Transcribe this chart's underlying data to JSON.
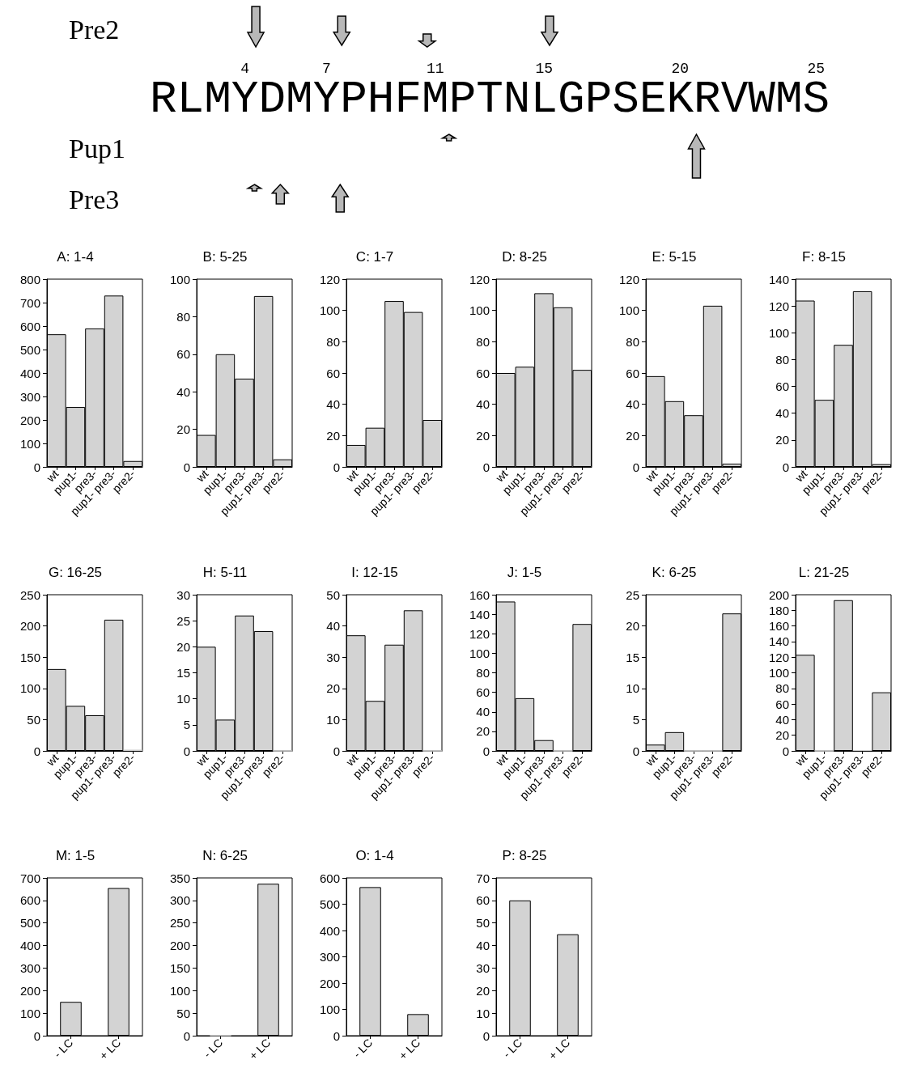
{
  "chart_data": [
    {
      "type": "other",
      "annotations": [
        "Pre2",
        "Pup1",
        "Pre3",
        "RLMYDMYPHFMPTNLGPSEKRVWMS",
        "4",
        "7",
        "11",
        "15",
        "20",
        "25"
      ]
    },
    {
      "type": "bar",
      "title": "A: 1-4",
      "categories": [
        "wt",
        "pup1-",
        "pre3-",
        "pup1- pre3-",
        "pre2-"
      ],
      "values": [
        565,
        255,
        590,
        730,
        25
      ],
      "color": "#d3d3d3",
      "ylim": [
        0,
        800
      ],
      "yticks": [
        0,
        100,
        200,
        300,
        400,
        500,
        600,
        700,
        800
      ]
    },
    {
      "type": "bar",
      "title": "B: 5-25",
      "categories": [
        "wt",
        "pup1-",
        "pre3-",
        "pup1- pre3-",
        "pre2-"
      ],
      "values": [
        17,
        60,
        47,
        91,
        4
      ],
      "color": "#d3d3d3",
      "ylim": [
        0,
        100
      ],
      "yticks": [
        0,
        20,
        40,
        60,
        80,
        100
      ]
    },
    {
      "type": "bar",
      "title": "C: 1-7",
      "categories": [
        "wt",
        "pup1-",
        "pre3-",
        "pup1- pre3-",
        "pre2-"
      ],
      "values": [
        14,
        25,
        106,
        99,
        30
      ],
      "color": "#d3d3d3",
      "ylim": [
        0,
        120
      ],
      "yticks": [
        0,
        20,
        40,
        60,
        80,
        100,
        120
      ]
    },
    {
      "type": "bar",
      "title": "D: 8-25",
      "categories": [
        "wt",
        "pup1-",
        "pre3-",
        "pup1- pre3-",
        "pre2-"
      ],
      "values": [
        60,
        64,
        111,
        102,
        62
      ],
      "color": "#d3d3d3",
      "ylim": [
        0,
        120
      ],
      "yticks": [
        0,
        20,
        40,
        60,
        80,
        100,
        120
      ]
    },
    {
      "type": "bar",
      "title": "E: 5-15",
      "categories": [
        "wt",
        "pup1-",
        "pre3-",
        "pup1- pre3-",
        "pre2-"
      ],
      "values": [
        58,
        42,
        33,
        103,
        2
      ],
      "color": "#d3d3d3",
      "ylim": [
        0,
        120
      ],
      "yticks": [
        0,
        20,
        40,
        60,
        80,
        100,
        120
      ]
    },
    {
      "type": "bar",
      "title": "F: 8-15",
      "categories": [
        "wt",
        "pup1-",
        "pre3-",
        "pup1- pre3-",
        "pre2-"
      ],
      "values": [
        124,
        50,
        91,
        131,
        2
      ],
      "color": "#d3d3d3",
      "ylim": [
        0,
        140
      ],
      "yticks": [
        0,
        20,
        40,
        60,
        80,
        100,
        120,
        140
      ]
    },
    {
      "type": "bar",
      "title": "G: 16-25",
      "categories": [
        "wt",
        "pup1-",
        "pre3-",
        "pup1- pre3-",
        "pre2-"
      ],
      "values": [
        131,
        72,
        57,
        210,
        2
      ],
      "color": "#d3d3d3",
      "ylim": [
        0,
        250
      ],
      "yticks": [
        0,
        50,
        100,
        150,
        200,
        250
      ]
    },
    {
      "type": "bar",
      "title": "H: 5-11",
      "categories": [
        "wt",
        "pup1-",
        "pre3-",
        "pup1- pre3-",
        "pre2-"
      ],
      "values": [
        20,
        6,
        26,
        23,
        0
      ],
      "color": "#d3d3d3",
      "ylim": [
        0,
        30
      ],
      "yticks": [
        0,
        5,
        10,
        15,
        20,
        25,
        30
      ]
    },
    {
      "type": "bar",
      "title": "I: 12-15",
      "categories": [
        "wt",
        "pup1-",
        "pre3-",
        "pup1- pre3-",
        "pre2-"
      ],
      "values": [
        37,
        16,
        34,
        45,
        0
      ],
      "color": "#d3d3d3",
      "ylim": [
        0,
        50
      ],
      "yticks": [
        0,
        10,
        20,
        30,
        40,
        50
      ]
    },
    {
      "type": "bar",
      "title": "J: 1-5",
      "categories": [
        "wt",
        "pup1-",
        "pre3-",
        "pup1- pre3-",
        "pre2-"
      ],
      "values": [
        153,
        54,
        11,
        0,
        130
      ],
      "color": "#d3d3d3",
      "ylim": [
        0,
        160
      ],
      "yticks": [
        0,
        20,
        40,
        60,
        80,
        100,
        120,
        140,
        160
      ]
    },
    {
      "type": "bar",
      "title": "K: 6-25",
      "categories": [
        "wt",
        "pup1-",
        "pre3-",
        "pup1- pre3-",
        "pre2-"
      ],
      "values": [
        1,
        3,
        0,
        0,
        22
      ],
      "color": "#d3d3d3",
      "ylim": [
        0,
        25
      ],
      "yticks": [
        0,
        5,
        10,
        15,
        20,
        25
      ]
    },
    {
      "type": "bar",
      "title": "L: 21-25",
      "categories": [
        "wt",
        "pup1-",
        "pre3-",
        "pup1- pre3-",
        "pre2-"
      ],
      "values": [
        123,
        0,
        193,
        1,
        75
      ],
      "color": "#d3d3d3",
      "ylim": [
        0,
        200
      ],
      "yticks": [
        0,
        20,
        40,
        60,
        80,
        100,
        120,
        140,
        160,
        180,
        200
      ]
    },
    {
      "type": "bar",
      "title": "M: 1-5",
      "categories": [
        "- LC",
        "+ LC"
      ],
      "values": [
        150,
        655
      ],
      "color": "#d3d3d3",
      "ylim": [
        0,
        700
      ],
      "yticks": [
        0,
        100,
        200,
        300,
        400,
        500,
        600,
        700
      ]
    },
    {
      "type": "bar",
      "title": "N: 6-25",
      "categories": [
        "- LC",
        "+ LC"
      ],
      "values": [
        1,
        337
      ],
      "color": "#d3d3d3",
      "ylim": [
        0,
        350
      ],
      "yticks": [
        0,
        50,
        100,
        150,
        200,
        250,
        300,
        350
      ]
    },
    {
      "type": "bar",
      "title": "O: 1-4",
      "categories": [
        "- LC",
        "+ LC"
      ],
      "values": [
        565,
        82
      ],
      "color": "#d3d3d3",
      "ylim": [
        0,
        600
      ],
      "yticks": [
        0,
        100,
        200,
        300,
        400,
        500,
        600
      ]
    },
    {
      "type": "bar",
      "title": "P: 8-25",
      "categories": [
        "- LC",
        "+ LC"
      ],
      "values": [
        60,
        45
      ],
      "color": "#d3d3d3",
      "ylim": [
        0,
        70
      ],
      "yticks": [
        0,
        10,
        20,
        30,
        40,
        50,
        60,
        70
      ]
    }
  ]
}
